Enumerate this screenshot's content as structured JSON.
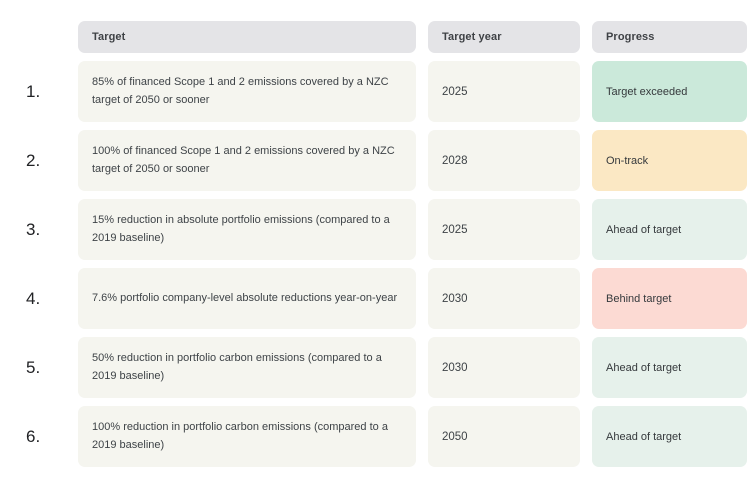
{
  "table": {
    "headers": [
      {
        "label": "Target"
      },
      {
        "label": "Target year"
      },
      {
        "label": "Progress"
      }
    ],
    "rows": [
      {
        "num": "1.",
        "target": "85% of financed Scope 1 and 2 emissions covered by a NZC target of 2050 or sooner",
        "year": "2025",
        "progress": "Target exceeded",
        "status": "exceeded"
      },
      {
        "num": "2.",
        "target": "100% of financed Scope 1 and 2 emissions covered by a NZC target of 2050 or sooner",
        "year": "2028",
        "progress": "On-track",
        "status": "on_track"
      },
      {
        "num": "3.",
        "target": "15% reduction in absolute portfolio emissions (compared to a 2019 baseline)",
        "year": "2025",
        "progress": "Ahead of target",
        "status": "ahead"
      },
      {
        "num": "4.",
        "target": "7.6% portfolio company-level absolute reductions year-on-year",
        "year": "2030",
        "progress": "Behind target",
        "status": "behind"
      },
      {
        "num": "5.",
        "target": "50% reduction in portfolio carbon emissions (compared to a 2019 baseline)",
        "year": "2030",
        "progress": "Ahead of target",
        "status": "ahead"
      },
      {
        "num": "6.",
        "target": "100% reduction in portfolio carbon emissions (compared to a 2019 baseline)",
        "year": "2050",
        "progress": "Ahead of target",
        "status": "ahead"
      }
    ],
    "colors": {
      "header_bg": "#e4e4e7",
      "cell_bg": "#f5f5ef",
      "status": {
        "exceeded": "#cbe9da",
        "on_track": "#fbe8c4",
        "ahead": "#e6f1eb",
        "behind": "#fcdad3"
      },
      "text": "#3e4347"
    }
  },
  "chart_data": {
    "type": "table",
    "columns": [
      "#",
      "Target",
      "Target year",
      "Progress"
    ],
    "rows": [
      [
        "1.",
        "85% of financed Scope 1 and 2 emissions covered by a NZC target of 2050 or sooner",
        "2025",
        "Target exceeded"
      ],
      [
        "2.",
        "100% of financed Scope 1 and 2 emissions covered by a NZC target of 2050 or sooner",
        "2028",
        "On-track"
      ],
      [
        "3.",
        "15% reduction in absolute portfolio emissions (compared to a 2019 baseline)",
        "2025",
        "Ahead of target"
      ],
      [
        "4.",
        "7.6% portfolio company-level absolute reductions year-on-year",
        "2030",
        "Behind target"
      ],
      [
        "5.",
        "50% reduction in portfolio carbon emissions (compared to a 2019 baseline)",
        "2030",
        "Ahead of target"
      ],
      [
        "6.",
        "100% reduction in portfolio carbon emissions (compared to a 2019 baseline)",
        "2050",
        "Ahead of target"
      ]
    ]
  }
}
